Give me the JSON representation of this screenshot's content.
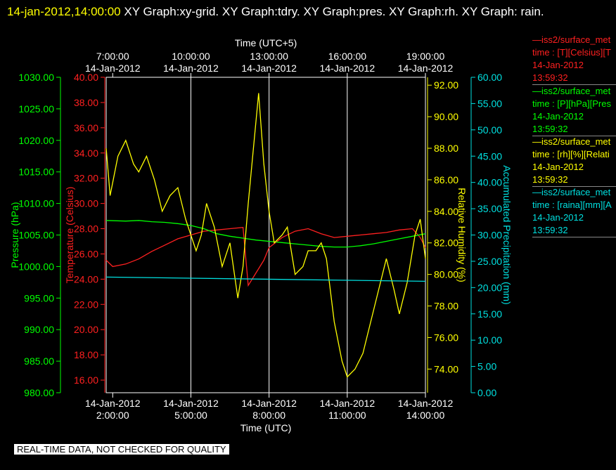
{
  "title": {
    "timestamp": "14-jan-2012,14:00:00",
    "text": "  XY Graph:xy-grid.  XY Graph:tdry.  XY Graph:pres.  XY Graph:rh.  XY Graph: rain."
  },
  "legend": [
    {
      "name": "iss2/surface_met",
      "line1": "time : [T][Celsius][T",
      "date": "14-Jan-2012",
      "time": "13:59:32",
      "color": "#ff2020"
    },
    {
      "name": "iss2/surface_met",
      "line1": "time : [P][hPa][Pres",
      "date": "14-Jan-2012",
      "time": "13:59:32",
      "color": "#00ff00"
    },
    {
      "name": "iss2/surface_met",
      "line1": "time : [rh][%][Relati",
      "date": "14-Jan-2012",
      "time": "13:59:32",
      "color": "#ffff00"
    },
    {
      "name": "iss2/surface_met",
      "line1": "time : [raina][mm][A",
      "date": "14-Jan-2012",
      "time": "13:59:32",
      "color": "#00e0e0"
    }
  ],
  "footer": "REAL-TIME DATA, NOT CHECKED FOR QUALITY",
  "chart_data": {
    "type": "line",
    "xlabel_bottom": "Time (UTC)",
    "xlabel_top": "Time (UTC+5)",
    "x_range_hours": [
      1.75,
      14.0
    ],
    "bottom_ticks": [
      {
        "h": 2,
        "date": "14-Jan-2012",
        "time": "2:00:00"
      },
      {
        "h": 5,
        "date": "14-Jan-2012",
        "time": "5:00:00"
      },
      {
        "h": 8,
        "date": "14-Jan-2012",
        "time": "8:00:00"
      },
      {
        "h": 11,
        "date": "14-Jan-2012",
        "time": "11:00:00"
      },
      {
        "h": 14,
        "date": "14-Jan-2012",
        "time": "14:00:00"
      }
    ],
    "top_ticks": [
      {
        "h": 2,
        "time": "7:00:00",
        "date": "14-Jan-2012"
      },
      {
        "h": 5,
        "time": "10:00:00",
        "date": "14-Jan-2012"
      },
      {
        "h": 8,
        "time": "13:00:00",
        "date": "14-Jan-2012"
      },
      {
        "h": 11,
        "time": "16:00:00",
        "date": "14-Jan-2012"
      },
      {
        "h": 14,
        "time": "19:00:00",
        "date": "14-Jan-2012"
      }
    ],
    "grid_hours": [
      5,
      8,
      11
    ],
    "axes": {
      "pressure": {
        "label": "Pressure (hPa)",
        "range": [
          980,
          1030
        ],
        "ticks": [
          "980.00",
          "985.00",
          "990.00",
          "995.00",
          "1000.00",
          "1005.00",
          "1010.00",
          "1015.00",
          "1020.00",
          "1025.00",
          "1030.00"
        ],
        "color": "#00ff00"
      },
      "temperature": {
        "label": "Temperature (Celsius)",
        "range": [
          15,
          40
        ],
        "ticks": [
          "16.00",
          "18.00",
          "20.00",
          "22.00",
          "24.00",
          "26.00",
          "28.00",
          "30.00",
          "32.00",
          "34.00",
          "36.00",
          "38.00",
          "40.00"
        ],
        "color": "#ff2020"
      },
      "rh": {
        "label": "Relative Humidity (%)",
        "range": [
          72.5,
          92.5
        ],
        "ticks": [
          "74.00",
          "76.00",
          "78.00",
          "80.00",
          "82.00",
          "84.00",
          "86.00",
          "88.00",
          "90.00",
          "92.00"
        ],
        "color": "#ffff00"
      },
      "precip": {
        "label": "Accumulated Precipitation (mm)",
        "range": [
          0,
          60
        ],
        "ticks": [
          "0.00",
          "5.00",
          "10.00",
          "15.00",
          "20.00",
          "25.00",
          "30.00",
          "35.00",
          "40.00",
          "45.00",
          "50.00",
          "55.00",
          "60.00"
        ],
        "color": "#00e0e0"
      }
    },
    "series": [
      {
        "name": "T",
        "axis": "temperature",
        "color": "#ff2020",
        "x": [
          1.75,
          2.0,
          2.5,
          3.0,
          3.5,
          4.0,
          4.5,
          5.0,
          5.5,
          6.0,
          6.5,
          7.0,
          7.2,
          7.5,
          7.8,
          8.0,
          8.5,
          9.0,
          9.5,
          10.0,
          10.5,
          11.0,
          11.5,
          12.0,
          12.5,
          13.0,
          13.5,
          13.8,
          14.0
        ],
        "y": [
          25.5,
          25.0,
          25.2,
          25.6,
          26.2,
          26.7,
          27.2,
          27.5,
          27.8,
          27.9,
          28.0,
          28.1,
          23.5,
          24.5,
          25.5,
          26.5,
          27.3,
          27.8,
          28.0,
          27.6,
          27.3,
          27.4,
          27.5,
          27.6,
          27.7,
          27.9,
          28.0,
          27.3,
          26.5
        ]
      },
      {
        "name": "P",
        "axis": "pressure",
        "color": "#00ff00",
        "x": [
          1.75,
          2.5,
          3.0,
          3.5,
          4.0,
          4.5,
          5.0,
          5.5,
          6.0,
          6.5,
          7.0,
          7.5,
          8.0,
          8.5,
          9.0,
          9.5,
          10.0,
          10.5,
          11.0,
          11.5,
          12.0,
          12.5,
          13.0,
          13.5,
          14.0
        ],
        "y": [
          1007.3,
          1007.2,
          1007.3,
          1007.1,
          1007.0,
          1006.8,
          1006.5,
          1006.0,
          1005.2,
          1004.8,
          1004.5,
          1004.2,
          1004.0,
          1003.8,
          1003.6,
          1003.4,
          1003.2,
          1003.1,
          1003.1,
          1003.3,
          1003.6,
          1004.0,
          1004.4,
          1004.8,
          1005.2
        ]
      },
      {
        "name": "rh",
        "axis": "rh",
        "color": "#ffff00",
        "x": [
          1.75,
          1.9,
          2.2,
          2.5,
          2.8,
          3.0,
          3.3,
          3.6,
          3.9,
          4.2,
          4.5,
          4.8,
          5.0,
          5.2,
          5.4,
          5.6,
          5.9,
          6.2,
          6.5,
          6.8,
          7.0,
          7.2,
          7.4,
          7.6,
          7.8,
          8.0,
          8.2,
          8.5,
          8.7,
          9.0,
          9.3,
          9.5,
          9.8,
          10.0,
          10.2,
          10.5,
          10.8,
          11.0,
          11.3,
          11.6,
          11.9,
          12.2,
          12.5,
          12.8,
          13.0,
          13.3,
          13.6,
          13.8,
          14.0
        ],
        "y": [
          88.0,
          85.0,
          87.5,
          88.5,
          87.0,
          86.5,
          87.5,
          86.0,
          84.0,
          85.0,
          85.5,
          83.5,
          82.5,
          81.5,
          82.5,
          84.5,
          83.0,
          80.5,
          82.0,
          78.5,
          80.5,
          84.5,
          88.0,
          91.5,
          87.0,
          84.0,
          82.0,
          82.5,
          83.0,
          80.0,
          80.5,
          81.5,
          81.5,
          82.0,
          81.0,
          77.0,
          74.5,
          73.5,
          74.0,
          75.0,
          77.0,
          79.0,
          81.0,
          79.0,
          77.5,
          79.5,
          82.5,
          83.5,
          81.0
        ]
      },
      {
        "name": "raina",
        "axis": "precip",
        "color": "#00e0e0",
        "x": [
          1.75,
          14.0
        ],
        "y": [
          22.0,
          21.2
        ]
      }
    ]
  }
}
